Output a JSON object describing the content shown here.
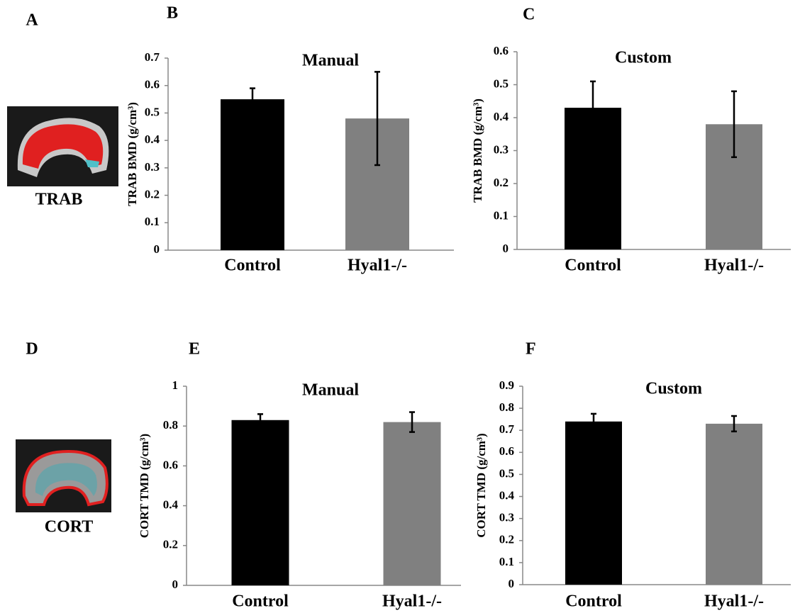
{
  "images": [
    {
      "panel": "A",
      "caption": "TRAB"
    },
    {
      "panel": "D",
      "caption": "CORT"
    }
  ],
  "chart_data": [
    {
      "type": "bar",
      "panel": "B",
      "title": "Manual",
      "y_label": "TRAB BMD (g/cm³)",
      "categories": [
        "Control",
        "Hyal1-/-"
      ],
      "values": [
        0.55,
        0.48
      ],
      "errors": [
        0.04,
        0.17
      ],
      "colors": [
        "#000000",
        "#808080"
      ],
      "ylim": [
        0,
        0.7
      ],
      "yticks": [
        0,
        0.1,
        0.2,
        0.3,
        0.4,
        0.5,
        0.6,
        0.7
      ]
    },
    {
      "type": "bar",
      "panel": "C",
      "title": "Custom",
      "y_label": "TRAB BMD (g/cm³)",
      "categories": [
        "Control",
        "Hyal1-/-"
      ],
      "values": [
        0.43,
        0.38
      ],
      "errors": [
        0.08,
        0.1
      ],
      "colors": [
        "#000000",
        "#808080"
      ],
      "ylim": [
        0,
        0.6
      ],
      "yticks": [
        0,
        0.1,
        0.2,
        0.3,
        0.4,
        0.5,
        0.6
      ]
    },
    {
      "type": "bar",
      "panel": "E",
      "title": "Manual",
      "y_label": "CORT TMD (g/cm³)",
      "categories": [
        "Control",
        "Hyal1-/-"
      ],
      "values": [
        0.83,
        0.82
      ],
      "errors": [
        0.03,
        0.05
      ],
      "colors": [
        "#000000",
        "#808080"
      ],
      "ylim": [
        0,
        1
      ],
      "yticks": [
        0,
        0.2,
        0.4,
        0.6,
        0.8,
        1
      ]
    },
    {
      "type": "bar",
      "panel": "F",
      "title": "Custom",
      "y_label": "CORT TMD (g/cm³)",
      "categories": [
        "Control",
        "Hyal1-/-"
      ],
      "values": [
        0.74,
        0.73
      ],
      "errors": [
        0.035,
        0.035
      ],
      "colors": [
        "#000000",
        "#808080"
      ],
      "ylim": [
        0,
        0.9
      ],
      "yticks": [
        0,
        0.1,
        0.2,
        0.3,
        0.4,
        0.5,
        0.6,
        0.7,
        0.8,
        0.9
      ]
    }
  ]
}
